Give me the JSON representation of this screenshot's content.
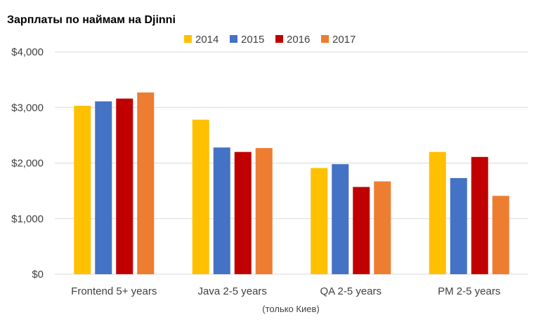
{
  "chart_data": {
    "type": "bar",
    "title": "Зарплаты по наймам на Djinni",
    "categories": [
      "Frontend 5+ years",
      "Java 2-5 years",
      "QA 2-5 years",
      "PM 2-5 years"
    ],
    "series": [
      {
        "name": "2014",
        "color": "#FFC000",
        "values": [
          3030,
          2780,
          1910,
          2200
        ]
      },
      {
        "name": "2015",
        "color": "#4472C4",
        "values": [
          3110,
          2280,
          1980,
          1730
        ]
      },
      {
        "name": "2016",
        "color": "#C00000",
        "values": [
          3160,
          2200,
          1570,
          2110
        ]
      },
      {
        "name": "2017",
        "color": "#ED7D31",
        "values": [
          3270,
          2270,
          1670,
          1410
        ]
      }
    ],
    "y_ticks": [
      "$0",
      "$1,000",
      "$2,000",
      "$3,000",
      "$4,000"
    ],
    "ylim": [
      0,
      4000
    ],
    "grid": true,
    "legend_position": "top",
    "note": "(только Киев)"
  }
}
